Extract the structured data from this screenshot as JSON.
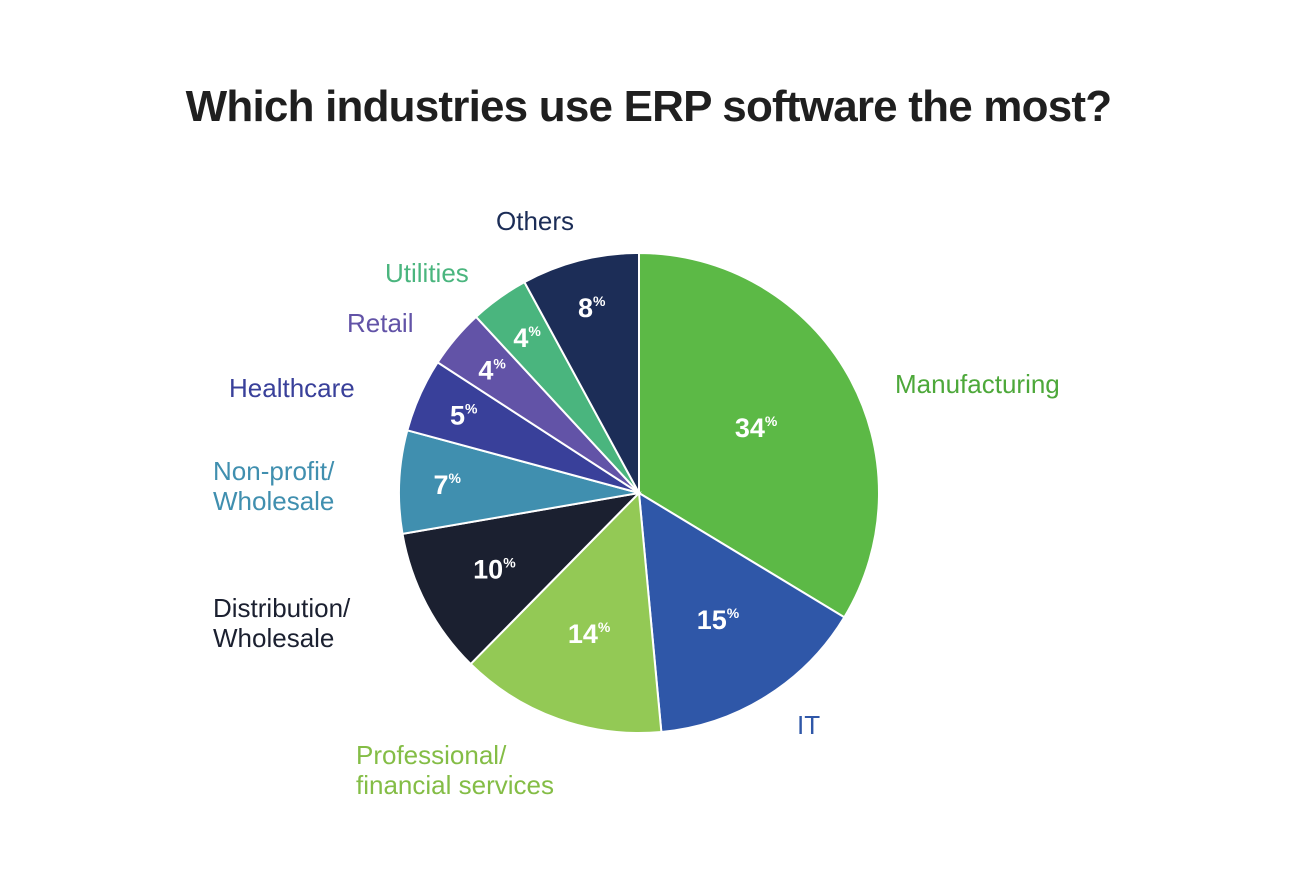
{
  "chart_data": {
    "type": "pie",
    "title": "Which industries use ERP software the most?",
    "value_suffix": "%",
    "slices": [
      {
        "label": [
          "Manufacturing"
        ],
        "value": 34,
        "color": "#5cb946",
        "label_color": "#4da83a"
      },
      {
        "label": [
          "IT"
        ],
        "value": 15,
        "color": "#2f57a8",
        "label_color": "#2f57a8"
      },
      {
        "label": [
          "Professional/",
          "financial services"
        ],
        "value": 14,
        "color": "#93c955",
        "label_color": "#84bd46"
      },
      {
        "label": [
          "Distribution/",
          "Wholesale"
        ],
        "value": 10,
        "color": "#1b2030",
        "label_color": "#1b2030"
      },
      {
        "label": [
          "Non-profit/",
          "Wholesale"
        ],
        "value": 7,
        "color": "#408faf",
        "label_color": "#408faf"
      },
      {
        "label": [
          "Healthcare"
        ],
        "value": 5,
        "color": "#39409a",
        "label_color": "#39409a"
      },
      {
        "label": [
          "Retail"
        ],
        "value": 4,
        "color": "#6253a7",
        "label_color": "#6253a7"
      },
      {
        "label": [
          "Utilities"
        ],
        "value": 4,
        "color": "#4ab57e",
        "label_color": "#4ab57e"
      },
      {
        "label": [
          "Others"
        ],
        "value": 8,
        "color": "#1c2d57",
        "label_color": "#1c2d57"
      }
    ]
  }
}
